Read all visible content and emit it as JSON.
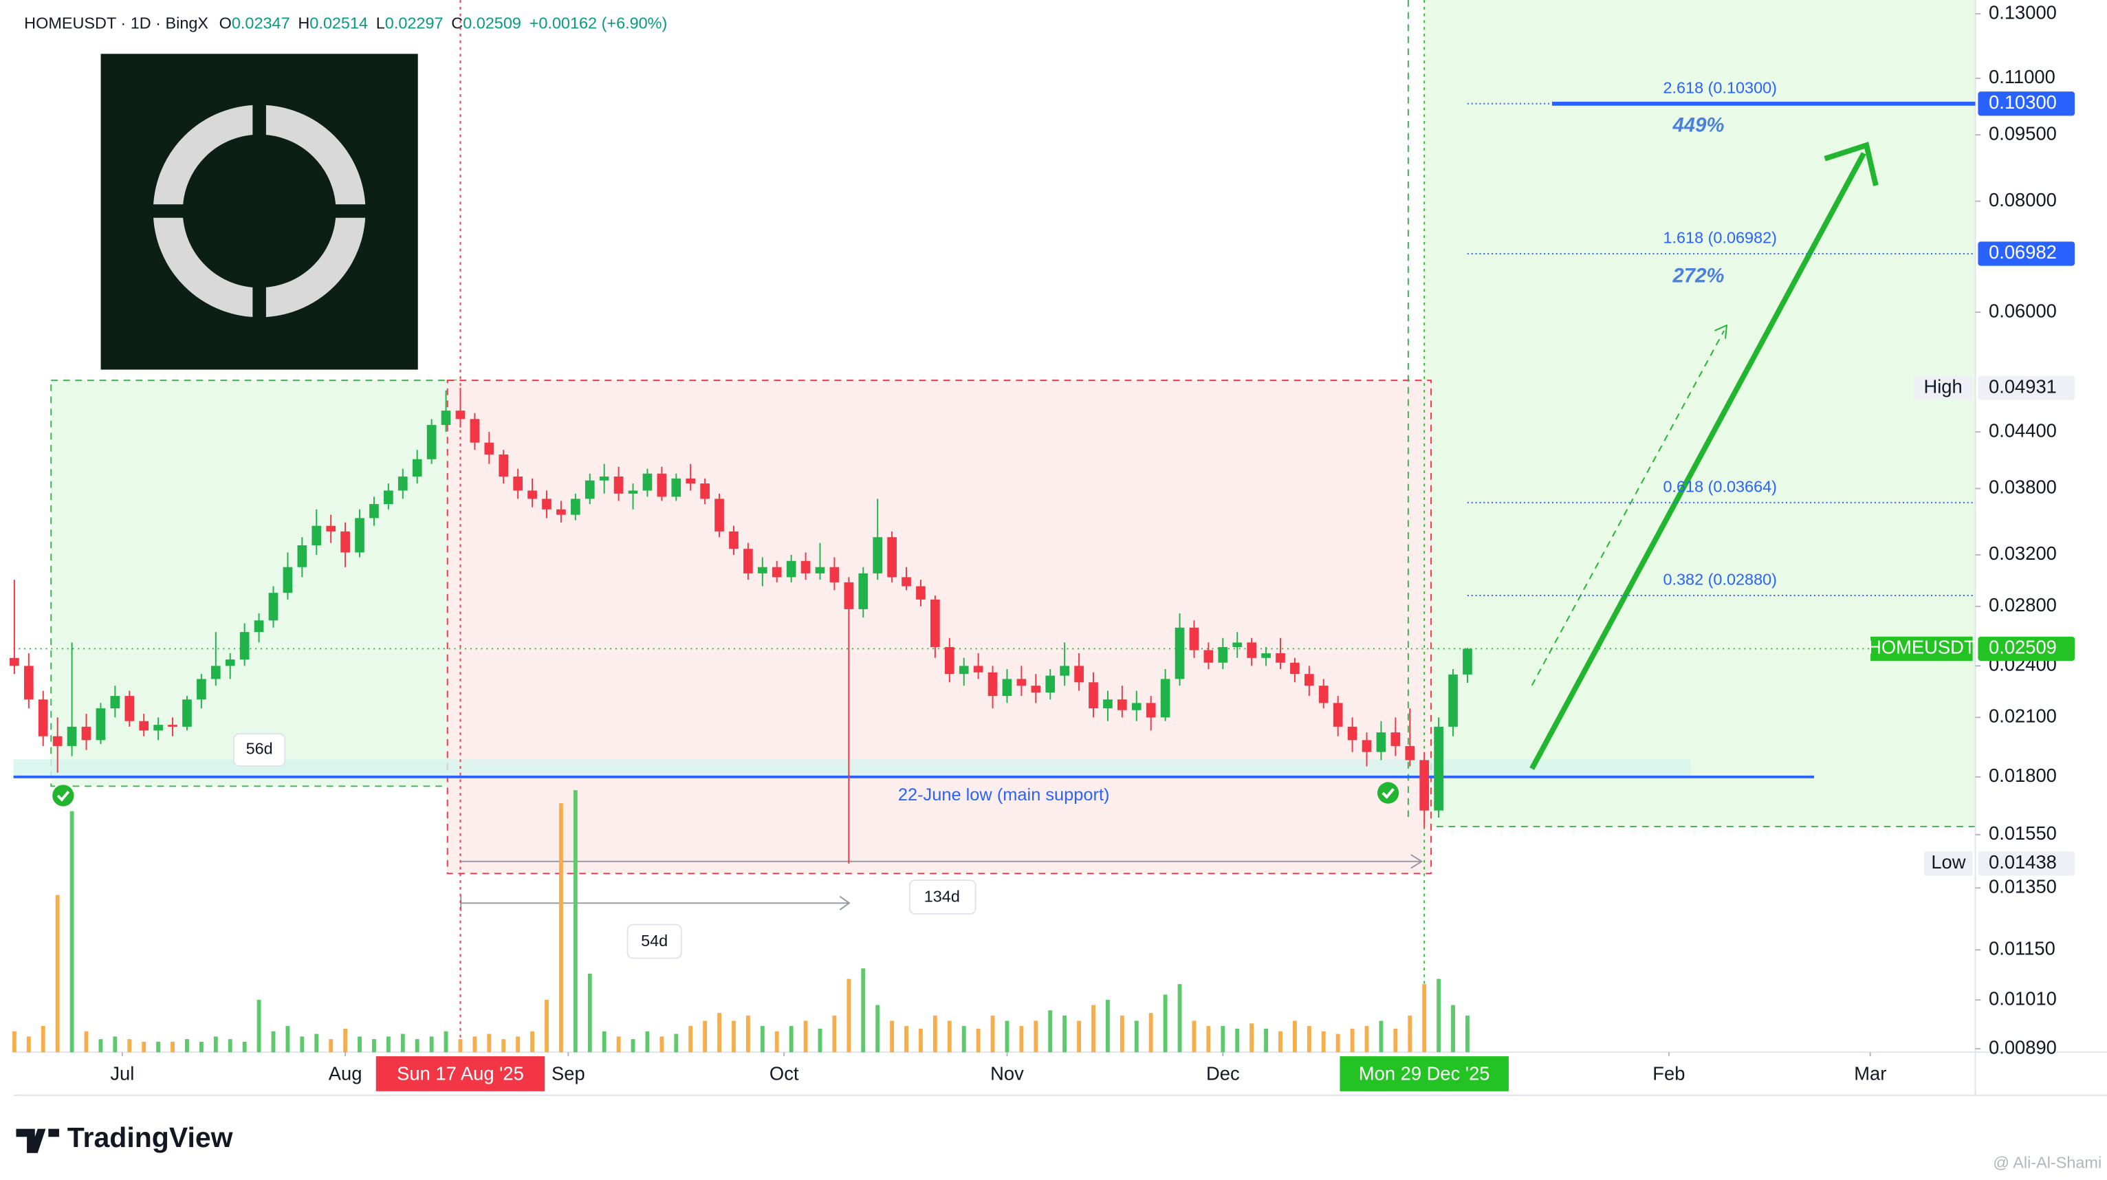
{
  "header": {
    "symbol": "HOMEUSDT · 1D · BingX",
    "ohlc": [
      {
        "label": "O",
        "value": 0.02347
      },
      {
        "label": "H",
        "value": 0.02514
      },
      {
        "label": "L",
        "value": 0.02297
      },
      {
        "label": "C",
        "value": 0.02509
      }
    ],
    "change": "+0.00162 (+6.90%)"
  },
  "chart_data": {
    "type": "candlestick",
    "x": [
      -15,
      -13,
      -11,
      -9,
      -7,
      -5,
      -3,
      -1,
      1,
      3,
      5,
      7,
      9,
      11,
      13,
      15,
      17,
      19,
      21,
      23,
      25,
      27,
      29,
      31,
      33,
      35,
      37,
      39,
      41,
      43,
      45,
      47,
      49,
      51,
      53,
      55,
      57,
      59,
      61,
      63,
      65,
      67,
      69,
      71,
      73,
      75,
      77,
      79,
      81,
      83,
      85,
      87,
      89,
      91,
      93,
      95,
      97,
      99,
      101,
      103,
      105,
      107,
      109,
      111,
      113,
      115,
      117,
      119,
      121,
      123,
      125,
      127,
      129,
      131,
      133,
      135,
      137,
      139,
      141,
      143,
      145,
      147,
      149,
      151,
      153,
      155,
      157,
      159,
      161,
      163,
      165,
      167,
      169,
      171,
      173,
      175,
      177,
      179,
      181,
      183,
      185,
      187
    ],
    "open": [
      0.0245,
      0.024,
      0.022,
      0.02,
      0.0195,
      0.0205,
      0.0198,
      0.0215,
      0.0222,
      0.0208,
      0.0203,
      0.0206,
      0.0205,
      0.022,
      0.0232,
      0.024,
      0.0244,
      0.0262,
      0.027,
      0.029,
      0.031,
      0.0328,
      0.0345,
      0.034,
      0.0322,
      0.0352,
      0.0365,
      0.0378,
      0.0392,
      0.041,
      0.0448,
      0.0465,
      0.0455,
      0.0428,
      0.0415,
      0.0392,
      0.0378,
      0.037,
      0.036,
      0.0355,
      0.037,
      0.0388,
      0.0392,
      0.0375,
      0.0378,
      0.0395,
      0.0372,
      0.039,
      0.0385,
      0.037,
      0.034,
      0.0325,
      0.0305,
      0.031,
      0.0302,
      0.0315,
      0.0305,
      0.031,
      0.0298,
      0.0278,
      0.0305,
      0.0335,
      0.0302,
      0.0295,
      0.0285,
      0.0252,
      0.0235,
      0.024,
      0.0236,
      0.0222,
      0.0232,
      0.0228,
      0.0224,
      0.0234,
      0.024,
      0.023,
      0.0215,
      0.022,
      0.0214,
      0.0218,
      0.021,
      0.0232,
      0.0265,
      0.025,
      0.0242,
      0.0252,
      0.0255,
      0.0245,
      0.0248,
      0.0242,
      0.0235,
      0.0228,
      0.0218,
      0.0205,
      0.0198,
      0.0192,
      0.0202,
      0.0195,
      0.0188,
      0.0165,
      0.0205,
      0.02347
    ],
    "high": [
      0.03,
      0.0248,
      0.0225,
      0.021,
      0.0255,
      0.0212,
      0.0218,
      0.0228,
      0.0225,
      0.0212,
      0.021,
      0.021,
      0.0222,
      0.0235,
      0.0262,
      0.0248,
      0.0268,
      0.0275,
      0.0295,
      0.0322,
      0.0335,
      0.036,
      0.0355,
      0.0348,
      0.036,
      0.0372,
      0.0385,
      0.04,
      0.042,
      0.0455,
      0.049,
      0.04931,
      0.0462,
      0.044,
      0.042,
      0.04,
      0.039,
      0.0378,
      0.0368,
      0.0375,
      0.0395,
      0.0405,
      0.0402,
      0.0385,
      0.04,
      0.0402,
      0.0395,
      0.0405,
      0.039,
      0.0375,
      0.0345,
      0.033,
      0.0318,
      0.0315,
      0.032,
      0.0322,
      0.033,
      0.0318,
      0.0302,
      0.031,
      0.037,
      0.034,
      0.031,
      0.03,
      0.0288,
      0.0258,
      0.0245,
      0.0248,
      0.024,
      0.0238,
      0.024,
      0.0235,
      0.0238,
      0.0255,
      0.0248,
      0.0236,
      0.0225,
      0.0228,
      0.0225,
      0.0222,
      0.0238,
      0.0275,
      0.027,
      0.0255,
      0.0258,
      0.0262,
      0.0258,
      0.0252,
      0.0258,
      0.0245,
      0.024,
      0.0232,
      0.0222,
      0.021,
      0.0202,
      0.0208,
      0.021,
      0.0215,
      0.0192,
      0.021,
      0.0238,
      0.02514
    ],
    "low": [
      0.0235,
      0.0215,
      0.0195,
      0.0182,
      0.019,
      0.0193,
      0.0196,
      0.021,
      0.0205,
      0.02,
      0.0198,
      0.02,
      0.0203,
      0.0215,
      0.0228,
      0.0232,
      0.024,
      0.0255,
      0.0265,
      0.0285,
      0.0302,
      0.032,
      0.033,
      0.031,
      0.0318,
      0.0345,
      0.036,
      0.037,
      0.0385,
      0.0405,
      0.044,
      0.0445,
      0.042,
      0.0405,
      0.0385,
      0.037,
      0.0362,
      0.0352,
      0.0348,
      0.035,
      0.0365,
      0.0375,
      0.0368,
      0.036,
      0.0372,
      0.0368,
      0.0368,
      0.0378,
      0.0365,
      0.0335,
      0.032,
      0.03,
      0.0295,
      0.0298,
      0.0298,
      0.03,
      0.03,
      0.0292,
      0.01438,
      0.0272,
      0.03,
      0.0298,
      0.0292,
      0.028,
      0.0245,
      0.023,
      0.0228,
      0.0232,
      0.0215,
      0.0218,
      0.0222,
      0.0218,
      0.022,
      0.0228,
      0.0225,
      0.021,
      0.0208,
      0.021,
      0.0208,
      0.0203,
      0.0208,
      0.0228,
      0.0245,
      0.0238,
      0.0238,
      0.0245,
      0.024,
      0.024,
      0.0238,
      0.023,
      0.0222,
      0.0215,
      0.02,
      0.0192,
      0.0185,
      0.0188,
      0.019,
      0.0185,
      0.0158,
      0.0162,
      0.02,
      0.02297
    ],
    "close": [
      0.024,
      0.022,
      0.02,
      0.0195,
      0.0205,
      0.0198,
      0.0215,
      0.0222,
      0.0208,
      0.0203,
      0.0206,
      0.0205,
      0.022,
      0.0232,
      0.024,
      0.0244,
      0.0262,
      0.027,
      0.029,
      0.031,
      0.0328,
      0.0345,
      0.034,
      0.0322,
      0.0352,
      0.0365,
      0.0378,
      0.0392,
      0.041,
      0.0448,
      0.0465,
      0.0455,
      0.0428,
      0.0415,
      0.0392,
      0.0378,
      0.037,
      0.036,
      0.0355,
      0.037,
      0.0388,
      0.0392,
      0.0375,
      0.0378,
      0.0395,
      0.0372,
      0.039,
      0.0385,
      0.037,
      0.034,
      0.0325,
      0.0305,
      0.031,
      0.0302,
      0.0315,
      0.0305,
      0.031,
      0.0298,
      0.0278,
      0.0305,
      0.0335,
      0.0302,
      0.0295,
      0.0285,
      0.0252,
      0.0235,
      0.024,
      0.0236,
      0.0222,
      0.0232,
      0.0228,
      0.0224,
      0.0234,
      0.024,
      0.023,
      0.0215,
      0.022,
      0.0214,
      0.0218,
      0.021,
      0.0232,
      0.0265,
      0.025,
      0.0242,
      0.0252,
      0.0255,
      0.0245,
      0.0248,
      0.0242,
      0.0235,
      0.0228,
      0.0218,
      0.0205,
      0.0198,
      0.0192,
      0.0202,
      0.0195,
      0.0188,
      0.0165,
      0.0205,
      0.02347,
      0.02509
    ],
    "volume": [
      8,
      6,
      10,
      60,
      92,
      8,
      5,
      6,
      5,
      4,
      4,
      4,
      5,
      4,
      6,
      5,
      4,
      20,
      8,
      10,
      6,
      7,
      5,
      9,
      6,
      5,
      6,
      7,
      5,
      6,
      8,
      5,
      6,
      7,
      5,
      6,
      8,
      20,
      95,
      100,
      30,
      8,
      6,
      5,
      8,
      6,
      7,
      10,
      12,
      15,
      12,
      14,
      10,
      8,
      10,
      12,
      9,
      14,
      28,
      32,
      18,
      12,
      10,
      9,
      14,
      12,
      10,
      9,
      14,
      12,
      10,
      12,
      16,
      14,
      12,
      18,
      20,
      14,
      12,
      15,
      22,
      26,
      12,
      10,
      10,
      9,
      11,
      9,
      8,
      12,
      10,
      8,
      7,
      9,
      10,
      12,
      9,
      14,
      26,
      28,
      18,
      14
    ],
    "up_color": "#1fb34a",
    "down_color": "#f23645",
    "volume_up_color": "#5cc96a",
    "volume_down_color": "#f7ad4a",
    "log_scale": true,
    "grid": false,
    "xlim": [
      -15.13,
      257.6
    ],
    "xticks": [
      {
        "value": 0,
        "label": "Jul"
      },
      {
        "value": 31,
        "label": "Aug"
      },
      {
        "value": 62,
        "label": "Sep"
      },
      {
        "value": 92,
        "label": "Oct"
      },
      {
        "value": 123,
        "label": "Nov"
      },
      {
        "value": 153,
        "label": "Dec"
      },
      {
        "value": 215,
        "label": "Feb"
      },
      {
        "value": 243,
        "label": "Mar"
      }
    ],
    "ylim": [
      0.00882,
      0.1347
    ],
    "yticks": [
      {
        "value": 0.13,
        "label": "0.13000"
      },
      {
        "value": 0.11,
        "label": "0.11000"
      },
      {
        "value": 0.095,
        "label": "0.09500"
      },
      {
        "value": 0.08,
        "label": "0.08000"
      },
      {
        "value": 0.06,
        "label": "0.06000"
      },
      {
        "value": 0.044,
        "label": "0.04400"
      },
      {
        "value": 0.038,
        "label": "0.03800"
      },
      {
        "value": 0.032,
        "label": "0.03200"
      },
      {
        "value": 0.028,
        "label": "0.02800"
      },
      {
        "value": 0.024,
        "label": "0.02400"
      },
      {
        "value": 0.021,
        "label": "0.02100"
      },
      {
        "value": 0.018,
        "label": "0.01800"
      },
      {
        "value": 0.0155,
        "label": "0.01550"
      },
      {
        "value": 0.0135,
        "label": "0.01350"
      },
      {
        "value": 0.0115,
        "label": "0.01150"
      },
      {
        "value": 0.0101,
        "label": "0.01010"
      },
      {
        "value": 0.0089,
        "label": "0.00890"
      }
    ],
    "fib_levels": [
      {
        "label": "2.618 (0.10300)",
        "value": 0.103
      },
      {
        "label": "1.618 (0.06982)",
        "value": 0.06982
      },
      {
        "label": "0.618 (0.03664)",
        "value": 0.03664
      },
      {
        "label": "0.382 (0.02880)",
        "value": 0.0288
      }
    ],
    "fib_targets": [
      "449%",
      "272%"
    ],
    "axis_badges": [
      {
        "text": "0.10300",
        "value": 0.103,
        "color": "#2962ff"
      },
      {
        "text": "0.06982",
        "value": 0.06982,
        "color": "#2962ff"
      },
      {
        "name": "High",
        "text": "0.04931",
        "value": 0.04931,
        "color": "#eef0f5"
      },
      {
        "name": "HOMEUSDT",
        "text": "0.02509",
        "value": 0.02509,
        "color": "#22c322"
      },
      {
        "name": "Low",
        "text": "0.01438",
        "value": 0.01438,
        "color": "#eef0f5"
      }
    ],
    "support": {
      "label": "22-June low (main support)",
      "value": 0.018
    },
    "ranges": [
      "56d",
      "54d",
      "134d"
    ],
    "date_badges": [
      {
        "label": "Sun 17 Aug '25",
        "x": 47,
        "color": "#f23645"
      },
      {
        "label": "Mon 29 Dec '25",
        "x": 181,
        "color": "#22c322"
      }
    ]
  },
  "footer": {
    "brand": "TradingView",
    "watermark": "@ Ali-Al-Shami"
  }
}
